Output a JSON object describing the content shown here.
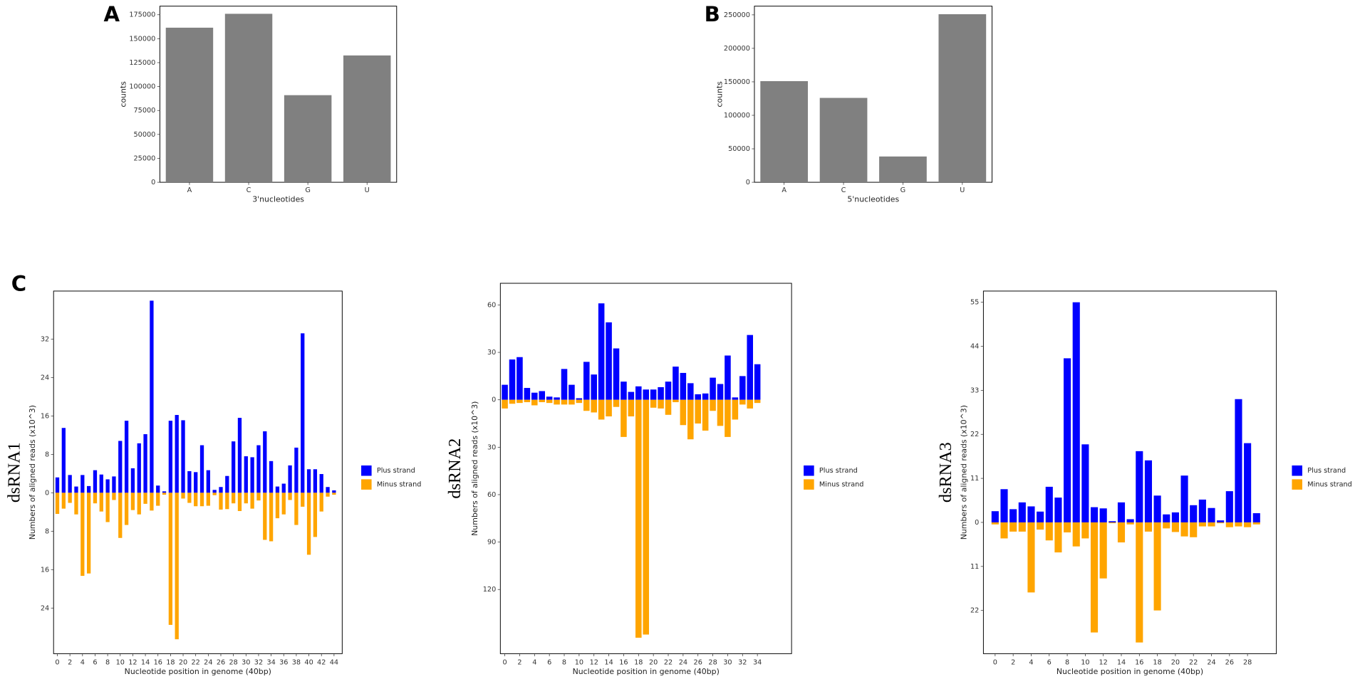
{
  "chart_data": [
    {
      "type": "bar",
      "panel_label": "A",
      "categories": [
        "A",
        "C",
        "G",
        "U"
      ],
      "values": [
        161500,
        176000,
        91000,
        132500
      ],
      "color": "#808080",
      "ylim": [
        0,
        184000
      ],
      "yticks": [
        0,
        25000,
        50000,
        75000,
        100000,
        125000,
        150000,
        175000
      ],
      "xlabel": "3'nucleotides",
      "ylabel": "counts"
    },
    {
      "type": "bar",
      "panel_label": "B",
      "categories": [
        "A",
        "C",
        "G",
        "U"
      ],
      "values": [
        151000,
        126000,
        38500,
        251000
      ],
      "color": "#808080",
      "ylim": [
        0,
        263000
      ],
      "yticks": [
        0,
        50000,
        100000,
        150000,
        200000,
        250000
      ],
      "xlabel": "5'nucleotides",
      "ylabel": "counts"
    },
    {
      "type": "bar",
      "panel_label": "C",
      "title": "dsRNA1",
      "xlabel": "Nucleotide position in genome (40bp)",
      "ylabel": "Numbers of aligned reads (x10^3)",
      "legend": "right",
      "x": [
        0,
        1,
        2,
        3,
        4,
        5,
        6,
        7,
        8,
        9,
        10,
        11,
        12,
        13,
        14,
        15,
        16,
        17,
        18,
        19,
        20,
        21,
        22,
        23,
        24,
        25,
        26,
        27,
        28,
        29,
        30,
        31,
        32,
        33,
        34,
        35,
        36,
        37,
        38,
        39,
        40,
        41,
        42,
        43,
        44
      ],
      "xlim": [
        -0.6,
        45.3
      ],
      "xticks": [
        0,
        2,
        4,
        6,
        8,
        10,
        12,
        14,
        16,
        18,
        20,
        22,
        24,
        26,
        28,
        30,
        32,
        34,
        36,
        38,
        40,
        42,
        44
      ],
      "ylim": [
        -33.5,
        42
      ],
      "yticks": [
        {
          "value": -24,
          "label": "24"
        },
        {
          "value": -16,
          "label": "16"
        },
        {
          "value": -8,
          "label": "8"
        },
        0,
        8,
        16,
        24,
        32
      ],
      "series": [
        {
          "name": "Plus strand",
          "color": "#0000ff",
          "values": [
            3.2,
            13.5,
            3.7,
            1.3,
            3.7,
            1.4,
            4.7,
            3.8,
            2.8,
            3.4,
            10.8,
            15,
            5.1,
            10.3,
            12.2,
            40,
            1.5,
            0.3,
            15,
            16.2,
            15.1,
            4.5,
            4.3,
            9.9,
            4.7,
            0.6,
            1.2,
            3.5,
            10.7,
            15.6,
            7.6,
            7.4,
            9.9,
            12.8,
            6.6,
            1.3,
            1.9,
            5.7,
            9.4,
            33.2,
            4.9,
            4.9,
            3.9,
            1.2,
            0.5
          ]
        },
        {
          "name": "Minus strand",
          "color": "#ffa500",
          "values": [
            -4.4,
            -3.3,
            -2.1,
            -4.5,
            -17.3,
            -16.8,
            -2.2,
            -3.9,
            -6.1,
            -1.5,
            -9.4,
            -6.7,
            -3.6,
            -4.5,
            -2.3,
            -3.7,
            -2.7,
            -0.4,
            -27.5,
            -30.5,
            -1.2,
            -2.1,
            -2.8,
            -2.8,
            -2.7,
            -0.5,
            -3.5,
            -3.4,
            -2.2,
            -3.8,
            -2.2,
            -3.3,
            -1.6,
            -9.8,
            -10.1,
            -5.3,
            -4.5,
            -1.5,
            -6.7,
            -2.9,
            -12.9,
            -9.2,
            -3.9,
            -0.8,
            -0.4
          ]
        }
      ]
    },
    {
      "type": "bar",
      "title": "dsRNA2",
      "xlabel": "Nucleotide position in genome (40bp)",
      "ylabel": "Numbers of aligned reads (x10^3)",
      "legend": "right",
      "x": [
        0,
        1,
        2,
        3,
        4,
        5,
        6,
        7,
        8,
        9,
        10,
        11,
        12,
        13,
        14,
        15,
        16,
        17,
        18,
        19,
        20,
        21,
        22,
        23,
        24,
        25,
        26,
        27,
        28,
        29,
        30,
        31,
        32,
        33,
        34
      ],
      "xlim": [
        -0.6,
        38.6
      ],
      "xticks": [
        0,
        2,
        4,
        6,
        8,
        10,
        12,
        14,
        16,
        18,
        20,
        22,
        24,
        26,
        28,
        30,
        32,
        34
      ],
      "ylim": [
        -160.6,
        73.7
      ],
      "yticks": [
        {
          "value": -120,
          "label": "120"
        },
        {
          "value": -90,
          "label": "90"
        },
        {
          "value": -60,
          "label": "60"
        },
        {
          "value": -30,
          "label": "30"
        },
        0,
        30,
        60
      ],
      "series": [
        {
          "name": "Plus strand",
          "color": "#0000ff",
          "values": [
            9.5,
            25.5,
            27,
            7.5,
            4.5,
            5.5,
            2,
            1.5,
            19.5,
            9.5,
            1,
            24,
            16,
            61,
            49,
            32.5,
            11.5,
            5,
            8.5,
            6.5,
            6.5,
            8,
            11.5,
            21,
            17,
            10.5,
            3.5,
            4,
            14,
            10,
            28,
            1.5,
            15,
            41,
            22.5
          ]
        },
        {
          "name": "Minus strand",
          "color": "#ffa500",
          "values": [
            -5.5,
            -2.5,
            -2,
            -1.5,
            -3.5,
            -1.5,
            -2,
            -3,
            -3,
            -3,
            -2,
            -7,
            -8,
            -12.5,
            -10.5,
            -4.5,
            -23.5,
            -10.5,
            -150.5,
            -148.5,
            -5,
            -5.5,
            -9.5,
            -1.5,
            -16,
            -25,
            -15,
            -19.5,
            -7,
            -16.5,
            -23.5,
            -12.5,
            -3,
            -5.5,
            -2
          ]
        }
      ]
    },
    {
      "type": "bar",
      "title": "dsRNA3",
      "xlabel": "Nucleotide position in genome (40bp)",
      "ylabel": "Numbers of aligned reads (x10^3)",
      "legend": "right",
      "x": [
        0,
        1,
        2,
        3,
        4,
        5,
        6,
        7,
        8,
        9,
        10,
        11,
        12,
        13,
        14,
        15,
        16,
        17,
        18,
        19,
        20,
        21,
        22,
        23,
        24,
        25,
        26,
        27,
        28,
        29
      ],
      "xlim": [
        -1.3,
        31.2
      ],
      "xticks": [
        0,
        2,
        4,
        6,
        8,
        10,
        12,
        14,
        16,
        18,
        20,
        22,
        24,
        26,
        28
      ],
      "ylim": [
        -32.8,
        57.8
      ],
      "yticks": [
        {
          "value": -22,
          "label": "22"
        },
        {
          "value": -11,
          "label": "11"
        },
        0,
        11,
        22,
        33,
        44,
        55
      ],
      "series": [
        {
          "name": "Plus strand",
          "color": "#0000ff",
          "values": [
            2.8,
            8.3,
            3.3,
            5,
            4,
            2.7,
            8.9,
            6.2,
            41,
            55,
            19.5,
            3.8,
            3.5,
            0.3,
            5,
            0.8,
            17.8,
            15.5,
            6.7,
            2,
            2.5,
            11.7,
            4.3,
            5.7,
            3.6,
            0.5,
            7.8,
            30.8,
            19.8,
            2.3
          ]
        },
        {
          "name": "Minus strand",
          "color": "#ffa500",
          "values": [
            -0.5,
            -4,
            -2.3,
            -2.3,
            -17.5,
            -1.8,
            -4.5,
            -7.5,
            -2.5,
            -6,
            -4,
            -27.5,
            -14,
            -0.2,
            -5,
            -0.5,
            -30,
            -2.3,
            -22,
            -1.5,
            -2.4,
            -3.5,
            -3.7,
            -1,
            -1,
            -0.2,
            -1.2,
            -1,
            -1.2,
            -0.5
          ]
        }
      ]
    }
  ]
}
